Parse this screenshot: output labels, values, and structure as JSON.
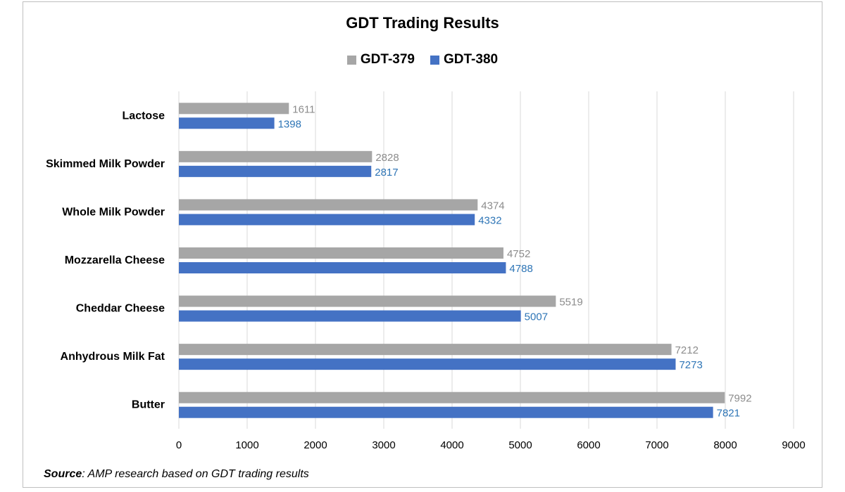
{
  "chart_data": {
    "type": "bar",
    "orientation": "horizontal",
    "title": "GDT Trading Results",
    "categories": [
      "Lactose",
      "Skimmed Milk Powder",
      "Whole Milk Powder",
      "Mozzarella Cheese",
      "Cheddar Cheese",
      "Anhydrous Milk Fat",
      "Butter"
    ],
    "series": [
      {
        "name": "GDT-379",
        "color": "#a6a6a6",
        "label_color": "#8c8c8c",
        "values": [
          1611,
          2828,
          4374,
          4752,
          5519,
          7212,
          7992
        ]
      },
      {
        "name": "GDT-380",
        "color": "#4472c4",
        "label_color": "#2e75b6",
        "values": [
          1398,
          2817,
          4332,
          4788,
          5007,
          7273,
          7821
        ]
      }
    ],
    "xlim": [
      0,
      9000
    ],
    "xticks": [
      0,
      1000,
      2000,
      3000,
      4000,
      5000,
      6000,
      7000,
      8000,
      9000
    ],
    "xlabel": "",
    "ylabel": "",
    "grid": "vertical",
    "legend": "top-center"
  },
  "source": {
    "label": "Source",
    "text": ": AMP research based on GDT trading results"
  }
}
